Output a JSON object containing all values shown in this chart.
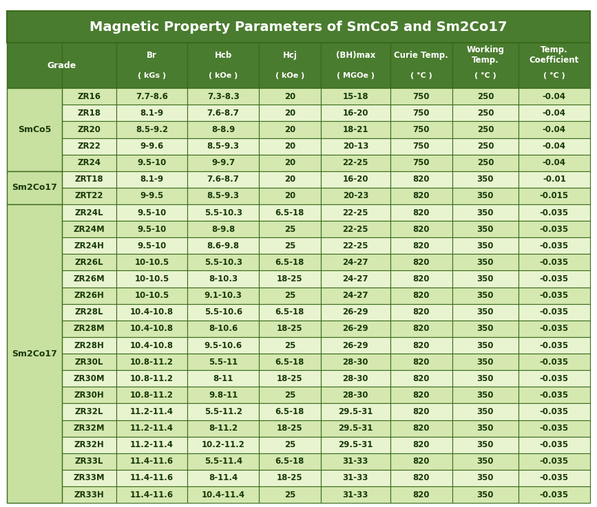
{
  "title": "Magnetic Property Parameters of SmCo5 and Sm2Co17",
  "title_bg": "#4a7c2f",
  "title_color": "#ffffff",
  "header_bg": "#4a7c2f",
  "header_color": "#ffffff",
  "cell_bg_light": "#d4e8b0",
  "cell_bg_white": "#e8f4d0",
  "group_label_bg": "#c8e0a0",
  "border_color": "#3a6b1a",
  "text_color": "#1a3a0a",
  "col_headers": [
    "Grade",
    "Br",
    "Hcb",
    "Hcj",
    "(BH)max",
    "Curie Temp.",
    "Working\nTemp.",
    "Temp.\nCoefficient"
  ],
  "col_units": [
    "",
    "( kGs )",
    "( kOe )",
    "( kOe )",
    "( MGOe )",
    "( °C )",
    "( °C )",
    "( °C )"
  ],
  "groups_info": [
    [
      "SmCo5",
      0,
      5
    ],
    [
      "Sm2Co17",
      5,
      7
    ],
    [
      "Sm2Co17",
      7,
      25
    ]
  ],
  "data": [
    [
      "ZR16",
      "7.7-8.6",
      "7.3-8.3",
      "20",
      "15-18",
      "750",
      "250",
      "-0.04"
    ],
    [
      "ZR18",
      "8.1-9",
      "7.6-8.7",
      "20",
      "16-20",
      "750",
      "250",
      "-0.04"
    ],
    [
      "ZR20",
      "8.5-9.2",
      "8-8.9",
      "20",
      "18-21",
      "750",
      "250",
      "-0.04"
    ],
    [
      "ZR22",
      "9-9.6",
      "8.5-9.3",
      "20",
      "20-13",
      "750",
      "250",
      "-0.04"
    ],
    [
      "ZR24",
      "9.5-10",
      "9-9.7",
      "20",
      "22-25",
      "750",
      "250",
      "-0.04"
    ],
    [
      "ZRT18",
      "8.1-9",
      "7.6-8.7",
      "20",
      "16-20",
      "820",
      "350",
      "-0.01"
    ],
    [
      "ZRT22",
      "9-9.5",
      "8.5-9.3",
      "20",
      "20-23",
      "820",
      "350",
      "-0.015"
    ],
    [
      "ZR24L",
      "9.5-10",
      "5.5-10.3",
      "6.5-18",
      "22-25",
      "820",
      "350",
      "-0.035"
    ],
    [
      "ZR24M",
      "9.5-10",
      "8-9.8",
      "25",
      "22-25",
      "820",
      "350",
      "-0.035"
    ],
    [
      "ZR24H",
      "9.5-10",
      "8.6-9.8",
      "25",
      "22-25",
      "820",
      "350",
      "-0.035"
    ],
    [
      "ZR26L",
      "10-10.5",
      "5.5-10.3",
      "6.5-18",
      "24-27",
      "820",
      "350",
      "-0.035"
    ],
    [
      "ZR26M",
      "10-10.5",
      "8-10.3",
      "18-25",
      "24-27",
      "820",
      "350",
      "-0.035"
    ],
    [
      "ZR26H",
      "10-10.5",
      "9.1-10.3",
      "25",
      "24-27",
      "820",
      "350",
      "-0.035"
    ],
    [
      "ZR28L",
      "10.4-10.8",
      "5.5-10.6",
      "6.5-18",
      "26-29",
      "820",
      "350",
      "-0.035"
    ],
    [
      "ZR28M",
      "10.4-10.8",
      "8-10.6",
      "18-25",
      "26-29",
      "820",
      "350",
      "-0.035"
    ],
    [
      "ZR28H",
      "10.4-10.8",
      "9.5-10.6",
      "25",
      "26-29",
      "820",
      "350",
      "-0.035"
    ],
    [
      "ZR30L",
      "10.8-11.2",
      "5.5-11",
      "6.5-18",
      "28-30",
      "820",
      "350",
      "-0.035"
    ],
    [
      "ZR30M",
      "10.8-11.2",
      "8-11",
      "18-25",
      "28-30",
      "820",
      "350",
      "-0.035"
    ],
    [
      "ZR30H",
      "10.8-11.2",
      "9.8-11",
      "25",
      "28-30",
      "820",
      "350",
      "-0.035"
    ],
    [
      "ZR32L",
      "11.2-11.4",
      "5.5-11.2",
      "6.5-18",
      "29.5-31",
      "820",
      "350",
      "-0.035"
    ],
    [
      "ZR32M",
      "11.2-11.4",
      "8-11.2",
      "18-25",
      "29.5-31",
      "820",
      "350",
      "-0.035"
    ],
    [
      "ZR32H",
      "11.2-11.4",
      "10.2-11.2",
      "25",
      "29.5-31",
      "820",
      "350",
      "-0.035"
    ],
    [
      "ZR33L",
      "11.4-11.6",
      "5.5-11.4",
      "6.5-18",
      "31-33",
      "820",
      "350",
      "-0.035"
    ],
    [
      "ZR33M",
      "11.4-11.6",
      "8-11.4",
      "18-25",
      "31-33",
      "820",
      "350",
      "-0.035"
    ],
    [
      "ZR33H",
      "11.4-11.6",
      "10.4-11.4",
      "25",
      "31-33",
      "820",
      "350",
      "-0.035"
    ]
  ],
  "figsize": [
    8.67,
    7.37
  ],
  "dpi": 100
}
